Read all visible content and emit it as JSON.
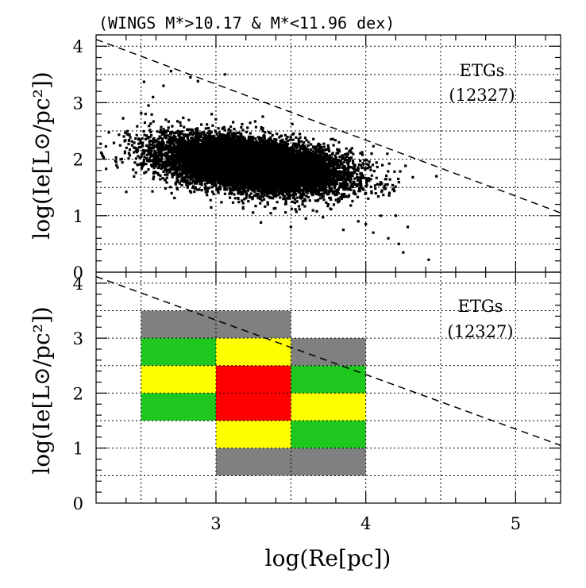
{
  "chart_data": [
    {
      "type": "scatter",
      "panel": "top",
      "title": "(WINGS M*>10.17 & M*<11.96 dex)",
      "xlabel": "log(Re[pc])",
      "ylabel": "log(Ie[L⊙/pc²])",
      "xlim": [
        2.2,
        5.3
      ],
      "ylim": [
        0,
        4.2
      ],
      "xticks": [
        3,
        4,
        5
      ],
      "yticks": [
        0,
        1,
        2,
        3,
        4
      ],
      "grid": true,
      "annotation": [
        "ETGs",
        "(12327)"
      ],
      "n_points": 12327,
      "distribution": {
        "center": [
          3.25,
          1.9
        ],
        "sd_major": 0.32,
        "sd_minor": 0.2,
        "angle_deg": -30
      },
      "outliers": [
        {
          "x": 2.52,
          "y": 3.37
        },
        {
          "x": 2.58,
          "y": 3.1
        },
        {
          "x": 2.55,
          "y": 2.95
        },
        {
          "x": 2.65,
          "y": 3.3
        },
        {
          "x": 2.7,
          "y": 3.56
        },
        {
          "x": 2.83,
          "y": 3.45
        },
        {
          "x": 2.88,
          "y": 3.38
        },
        {
          "x": 3.06,
          "y": 3.5
        },
        {
          "x": 2.53,
          "y": 2.8
        },
        {
          "x": 3.55,
          "y": 1.5
        },
        {
          "x": 3.75,
          "y": 1.2
        },
        {
          "x": 3.9,
          "y": 1.18
        },
        {
          "x": 3.95,
          "y": 0.9
        },
        {
          "x": 3.85,
          "y": 0.75
        },
        {
          "x": 4.0,
          "y": 0.85
        },
        {
          "x": 4.05,
          "y": 0.7
        },
        {
          "x": 4.1,
          "y": 1.0
        },
        {
          "x": 4.2,
          "y": 1.0
        },
        {
          "x": 4.28,
          "y": 0.8
        },
        {
          "x": 4.15,
          "y": 0.6
        },
        {
          "x": 4.22,
          "y": 0.5
        },
        {
          "x": 4.25,
          "y": 0.35
        },
        {
          "x": 4.42,
          "y": 0.22
        },
        {
          "x": 3.95,
          "y": 1.55
        },
        {
          "x": 4.0,
          "y": 1.4
        },
        {
          "x": 3.3,
          "y": 0.88
        },
        {
          "x": 3.5,
          "y": 0.8
        },
        {
          "x": 3.6,
          "y": 0.95
        }
      ],
      "reference_line": {
        "x": [
          2.2,
          5.3
        ],
        "y": [
          4.12,
          1.05
        ],
        "style": "dashed"
      }
    },
    {
      "type": "heatmap",
      "panel": "bottom",
      "xlabel": "log(Re[pc])",
      "ylabel": "log(Ie[L⊙/pc²])",
      "xlim": [
        2.2,
        5.3
      ],
      "ylim": [
        0,
        4.2
      ],
      "xticks": [
        3,
        4,
        5
      ],
      "yticks": [
        0,
        1,
        2,
        3,
        4
      ],
      "grid": true,
      "annotation": [
        "ETGs",
        "(12327)"
      ],
      "colors": {
        "gray": "#808080",
        "green": "#1ec81e",
        "yellow": "#ffff00",
        "red": "#ff0000"
      },
      "cells": [
        {
          "x0": 2.5,
          "x1": 3.5,
          "y0": 3.0,
          "y1": 3.5,
          "color": "gray"
        },
        {
          "x0": 3.5,
          "x1": 4.0,
          "y0": 2.5,
          "y1": 3.0,
          "color": "gray"
        },
        {
          "x0": 3.0,
          "x1": 4.0,
          "y0": 0.5,
          "y1": 1.0,
          "color": "gray"
        },
        {
          "x0": 2.5,
          "x1": 3.0,
          "y0": 2.5,
          "y1": 3.0,
          "color": "green"
        },
        {
          "x0": 2.5,
          "x1": 3.0,
          "y0": 1.5,
          "y1": 2.0,
          "color": "green"
        },
        {
          "x0": 3.5,
          "x1": 4.0,
          "y0": 2.0,
          "y1": 2.5,
          "color": "green"
        },
        {
          "x0": 3.5,
          "x1": 4.0,
          "y0": 1.0,
          "y1": 1.5,
          "color": "green"
        },
        {
          "x0": 2.5,
          "x1": 3.0,
          "y0": 2.0,
          "y1": 2.5,
          "color": "yellow"
        },
        {
          "x0": 3.0,
          "x1": 3.5,
          "y0": 2.5,
          "y1": 3.0,
          "color": "yellow"
        },
        {
          "x0": 3.5,
          "x1": 4.0,
          "y0": 1.5,
          "y1": 2.0,
          "color": "yellow"
        },
        {
          "x0": 3.0,
          "x1": 3.5,
          "y0": 1.0,
          "y1": 1.5,
          "color": "yellow"
        },
        {
          "x0": 3.0,
          "x1": 3.5,
          "y0": 1.5,
          "y1": 2.5,
          "color": "red"
        }
      ],
      "reference_line": {
        "x": [
          2.2,
          5.3
        ],
        "y": [
          4.12,
          1.05
        ],
        "style": "dashed"
      }
    }
  ]
}
